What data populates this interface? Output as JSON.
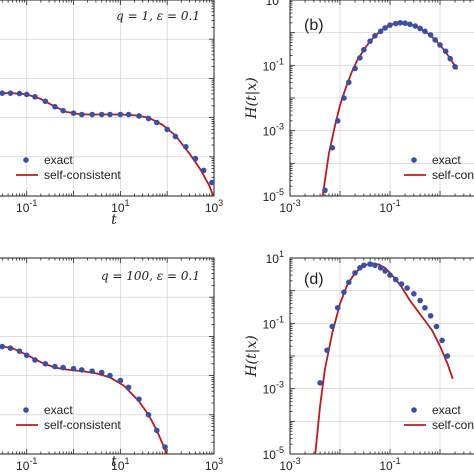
{
  "colors": {
    "exact": "#3a4fa8",
    "self_consistent": "#c0191c",
    "axes": "#222222",
    "grid": "#cccccc"
  },
  "chart_data": [
    {
      "id": "a",
      "type": "scatter+line",
      "panel_label": "",
      "annotation": "q = 1, ε = 0.1",
      "xlabel": "t",
      "ylabel": "",
      "xscale": "log",
      "yscale": "log",
      "xlim": [
        0.02,
        1000
      ],
      "ylim": [
        0.001,
        100
      ],
      "x_ticks": [
        {
          "v": 0.1,
          "label": "10^-1"
        },
        {
          "v": 10,
          "label": "10^1"
        },
        {
          "v": 1000,
          "label": "10^3"
        }
      ],
      "y_ticks": [],
      "grid": true,
      "legend": {
        "placement": "lower-left"
      },
      "series": [
        {
          "name": "exact",
          "style": "markers",
          "x": [
            0.03,
            0.045,
            0.07,
            0.1,
            0.15,
            0.25,
            0.4,
            0.6,
            1,
            1.5,
            2.5,
            4,
            6,
            10,
            15,
            25,
            40,
            60,
            100,
            150,
            250,
            400,
            600,
            900
          ],
          "y": [
            0.42,
            0.42,
            0.41,
            0.39,
            0.34,
            0.26,
            0.19,
            0.15,
            0.13,
            0.12,
            0.12,
            0.12,
            0.12,
            0.12,
            0.12,
            0.11,
            0.095,
            0.075,
            0.05,
            0.033,
            0.018,
            0.009,
            0.0045,
            0.0022
          ]
        },
        {
          "name": "self-consistent",
          "style": "line",
          "x": [
            0.02,
            0.05,
            0.1,
            0.2,
            0.4,
            0.7,
            1.2,
            2,
            4,
            10,
            20,
            40,
            80,
            150,
            300,
            500,
            800,
            1000
          ],
          "y": [
            0.42,
            0.42,
            0.39,
            0.3,
            0.19,
            0.14,
            0.125,
            0.12,
            0.12,
            0.12,
            0.115,
            0.1,
            0.065,
            0.035,
            0.012,
            0.005,
            0.0018,
            0.0009
          ]
        }
      ]
    },
    {
      "id": "b",
      "type": "scatter+line",
      "panel_label": "(b)",
      "annotation": "",
      "xlabel": "",
      "ylabel": "H(t|x)",
      "xscale": "log",
      "yscale": "log",
      "xlim": [
        0.001,
        10
      ],
      "ylim": [
        1e-05,
        10
      ],
      "x_ticks": [
        {
          "v": 0.001,
          "label": "10^-3"
        },
        {
          "v": 0.1,
          "label": "10^-1"
        }
      ],
      "y_ticks": [
        {
          "v": 10,
          "label": "10^1"
        },
        {
          "v": 0.1,
          "label": "10^-1"
        },
        {
          "v": 0.001,
          "label": "10^-3"
        },
        {
          "v": 1e-05,
          "label": "10^-5"
        }
      ],
      "grid": true,
      "legend": {
        "placement": "lower-right"
      },
      "series": [
        {
          "name": "exact",
          "style": "markers",
          "x": [
            0.005,
            0.007,
            0.009,
            0.012,
            0.015,
            0.02,
            0.025,
            0.03,
            0.04,
            0.05,
            0.065,
            0.08,
            0.1,
            0.13,
            0.16,
            0.2,
            0.25,
            0.32,
            0.4,
            0.5,
            0.65,
            0.8,
            1.0,
            1.3,
            1.6,
            2.0
          ],
          "y": [
            1.5e-05,
            0.0003,
            0.002,
            0.01,
            0.03,
            0.08,
            0.17,
            0.3,
            0.55,
            0.8,
            1.1,
            1.4,
            1.7,
            1.9,
            2.0,
            1.95,
            1.8,
            1.6,
            1.35,
            1.1,
            0.85,
            0.6,
            0.42,
            0.27,
            0.16,
            0.09
          ]
        },
        {
          "name": "self-consistent",
          "style": "line",
          "x": [
            0.0045,
            0.005,
            0.006,
            0.008,
            0.01,
            0.013,
            0.017,
            0.022,
            0.03,
            0.04,
            0.055,
            0.075,
            0.1,
            0.14,
            0.2,
            0.28,
            0.4,
            0.6,
            0.85,
            1.2,
            1.6,
            2.2
          ],
          "y": [
            1e-05,
            3e-05,
            0.0002,
            0.0015,
            0.006,
            0.02,
            0.06,
            0.14,
            0.3,
            0.55,
            0.9,
            1.35,
            1.75,
            2.0,
            1.95,
            1.7,
            1.35,
            0.9,
            0.55,
            0.3,
            0.16,
            0.075
          ]
        }
      ]
    },
    {
      "id": "c",
      "type": "scatter+line",
      "panel_label": "",
      "annotation": "q = 100, ε = 0.1",
      "xlabel": "t",
      "ylabel": "",
      "xscale": "log",
      "yscale": "log",
      "xlim": [
        0.02,
        1000
      ],
      "ylim": [
        0.001,
        100
      ],
      "x_ticks": [
        {
          "v": 0.1,
          "label": "10^-1"
        },
        {
          "v": 10,
          "label": "10^1"
        },
        {
          "v": 1000,
          "label": "10^3"
        }
      ],
      "y_ticks": [],
      "grid": true,
      "legend": {
        "placement": "lower-left"
      },
      "series": [
        {
          "name": "exact",
          "style": "markers",
          "x": [
            0.03,
            0.045,
            0.07,
            0.1,
            0.15,
            0.25,
            0.4,
            0.6,
            1,
            1.5,
            2.5,
            4,
            6,
            10,
            15,
            25,
            40,
            60,
            90
          ],
          "y": [
            0.55,
            0.5,
            0.42,
            0.33,
            0.25,
            0.2,
            0.17,
            0.16,
            0.15,
            0.14,
            0.13,
            0.12,
            0.1,
            0.075,
            0.05,
            0.025,
            0.01,
            0.004,
            0.0015
          ]
        },
        {
          "name": "self-consistent",
          "style": "line",
          "x": [
            0.02,
            0.05,
            0.1,
            0.2,
            0.4,
            0.8,
            1.5,
            3,
            6,
            12,
            25,
            40,
            60,
            90,
            130
          ],
          "y": [
            0.6,
            0.5,
            0.34,
            0.22,
            0.16,
            0.14,
            0.13,
            0.115,
            0.09,
            0.055,
            0.022,
            0.01,
            0.004,
            0.0013,
            0.0005
          ]
        }
      ]
    },
    {
      "id": "d",
      "type": "scatter+line",
      "panel_label": "(d)",
      "annotation": "",
      "xlabel": "",
      "ylabel": "H(t|x)",
      "xscale": "log",
      "yscale": "log",
      "xlim": [
        0.001,
        10
      ],
      "ylim": [
        1e-05,
        10
      ],
      "x_ticks": [
        {
          "v": 0.001,
          "label": "10^-3"
        },
        {
          "v": 0.1,
          "label": "10^-1"
        }
      ],
      "y_ticks": [
        {
          "v": 10,
          "label": "10^1"
        },
        {
          "v": 0.1,
          "label": "10^-1"
        },
        {
          "v": 0.001,
          "label": "10^-3"
        },
        {
          "v": 1e-05,
          "label": "10^-5"
        }
      ],
      "grid": true,
      "legend": {
        "placement": "lower-right"
      },
      "series": [
        {
          "name": "exact",
          "style": "markers",
          "x": [
            0.004,
            0.0055,
            0.007,
            0.009,
            0.012,
            0.015,
            0.02,
            0.025,
            0.03,
            0.04,
            0.05,
            0.065,
            0.08,
            0.1,
            0.13,
            0.17,
            0.22,
            0.3,
            0.4,
            0.5,
            0.65,
            0.85,
            1.1,
            1.4
          ],
          "y": [
            0.0015,
            0.015,
            0.08,
            0.3,
            0.9,
            1.8,
            3.5,
            5,
            6,
            6.5,
            6,
            5,
            4,
            3,
            2.2,
            1.6,
            1.2,
            0.8,
            0.5,
            0.3,
            0.17,
            0.08,
            0.03,
            0.01
          ]
        },
        {
          "name": "self-consistent",
          "style": "line",
          "x": [
            0.0032,
            0.004,
            0.005,
            0.007,
            0.01,
            0.014,
            0.02,
            0.03,
            0.045,
            0.06,
            0.08,
            0.1,
            0.13,
            0.17,
            0.25,
            0.35,
            0.5,
            0.7,
            1.0,
            1.4,
            1.8
          ],
          "y": [
            1e-05,
            0.0003,
            0.004,
            0.05,
            0.4,
            1.5,
            3.5,
            6,
            6.8,
            6.3,
            5,
            3.5,
            2.2,
            1.3,
            0.5,
            0.25,
            0.12,
            0.06,
            0.02,
            0.006,
            0.002
          ]
        }
      ]
    }
  ]
}
